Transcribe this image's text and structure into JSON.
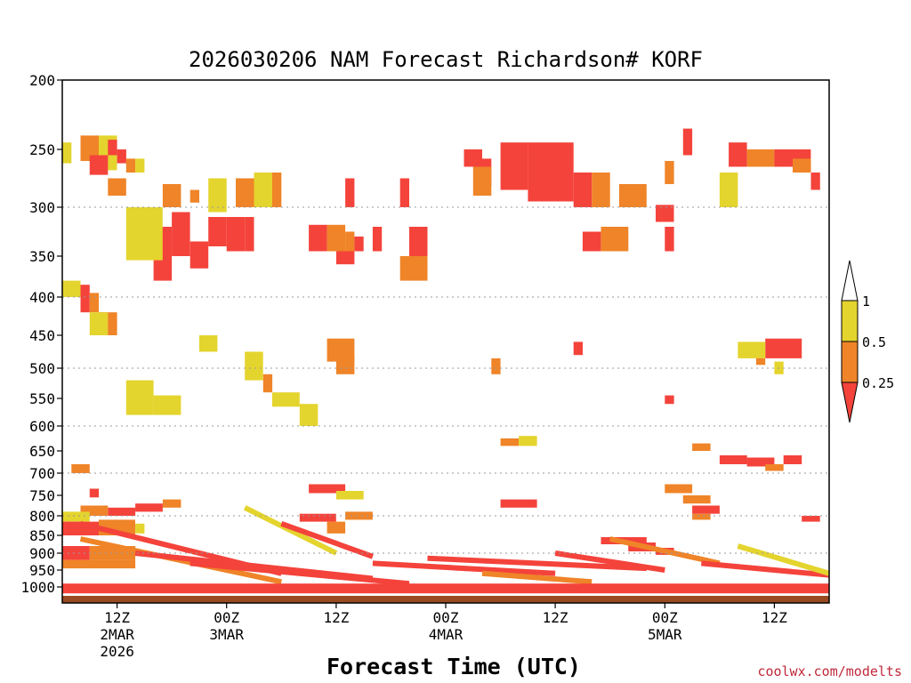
{
  "chart_data": {
    "type": "heatmap",
    "title": "2026030206 NAM Forecast Richardson# KORF",
    "xlabel": "Forecast Time (UTC)",
    "credit": "coolwx.com/modelts",
    "y_ticks": [
      "200",
      "250",
      "300",
      "350",
      "400",
      "450",
      "500",
      "550",
      "600",
      "650",
      "700",
      "750",
      "800",
      "850",
      "900",
      "950",
      "1000"
    ],
    "y_values": [
      200,
      250,
      300,
      350,
      400,
      450,
      500,
      550,
      600,
      650,
      700,
      750,
      800,
      850,
      900,
      950,
      1000
    ],
    "y_gridlines": [
      300,
      400,
      500,
      600,
      700,
      800,
      900
    ],
    "x_ticks": [
      {
        "hour": 12,
        "label": "12Z",
        "date": "2MAR",
        "year": "2026"
      },
      {
        "hour": 24,
        "label": "00Z",
        "date": "3MAR",
        "year": ""
      },
      {
        "hour": 36,
        "label": "12Z",
        "date": "",
        "year": ""
      },
      {
        "hour": 48,
        "label": "00Z",
        "date": "4MAR",
        "year": ""
      },
      {
        "hour": 60,
        "label": "12Z",
        "date": "",
        "year": ""
      },
      {
        "hour": 72,
        "label": "00Z",
        "date": "5MAR",
        "year": ""
      },
      {
        "hour": 84,
        "label": "12Z",
        "date": "",
        "year": ""
      }
    ],
    "x_range_hours": [
      6,
      90
    ],
    "legend": {
      "labels": [
        "1",
        "0.5",
        "0.25"
      ],
      "bins": [
        {
          "range": "< 0.25",
          "color": "#f4433b"
        },
        {
          "range": "0.25 - 0.5",
          "color": "#ef8428"
        },
        {
          "range": "0.5 - 1",
          "color": "#e4d42e"
        },
        {
          "range": "> 1",
          "color": "#ffffff"
        }
      ]
    },
    "cell_colors": {
      "y": "#e4d42e",
      "o": "#ef8428",
      "r": "#f4433b"
    },
    "terrain_color": "#9a4a22",
    "cells": [
      {
        "t": [
          6,
          7
        ],
        "p": [
          245,
          262
        ],
        "v": "y"
      },
      {
        "t": [
          8,
          10
        ],
        "p": [
          240,
          260
        ],
        "v": "o"
      },
      {
        "t": [
          10,
          12
        ],
        "p": [
          240,
          268
        ],
        "v": "y"
      },
      {
        "t": [
          9,
          11
        ],
        "p": [
          255,
          272
        ],
        "v": "r"
      },
      {
        "t": [
          11,
          12
        ],
        "p": [
          243,
          255
        ],
        "v": "r"
      },
      {
        "t": [
          12,
          13
        ],
        "p": [
          250,
          262
        ],
        "v": "r"
      },
      {
        "t": [
          13,
          14
        ],
        "p": [
          258,
          270
        ],
        "v": "o"
      },
      {
        "t": [
          14,
          15
        ],
        "p": [
          258,
          270
        ],
        "v": "y"
      },
      {
        "t": [
          11,
          13
        ],
        "p": [
          275,
          290
        ],
        "v": "o"
      },
      {
        "t": [
          17,
          19
        ],
        "p": [
          280,
          300
        ],
        "v": "o"
      },
      {
        "t": [
          20,
          21
        ],
        "p": [
          285,
          296
        ],
        "v": "o"
      },
      {
        "t": [
          16,
          18
        ],
        "p": [
          320,
          380
        ],
        "v": "r"
      },
      {
        "t": [
          18,
          20
        ],
        "p": [
          305,
          350
        ],
        "v": "r"
      },
      {
        "t": [
          20,
          22
        ],
        "p": [
          335,
          365
        ],
        "v": "r"
      },
      {
        "t": [
          22,
          24
        ],
        "p": [
          310,
          340
        ],
        "v": "r"
      },
      {
        "t": [
          24,
          26
        ],
        "p": [
          310,
          345
        ],
        "v": "r"
      },
      {
        "t": [
          26,
          27
        ],
        "p": [
          310,
          345
        ],
        "v": "r"
      },
      {
        "t": [
          13,
          17
        ],
        "p": [
          300,
          355
        ],
        "v": "y"
      },
      {
        "t": [
          25,
          27
        ],
        "p": [
          275,
          300
        ],
        "v": "o"
      },
      {
        "t": [
          22,
          24
        ],
        "p": [
          275,
          305
        ],
        "v": "y"
      },
      {
        "t": [
          27,
          29
        ],
        "p": [
          270,
          300
        ],
        "v": "y"
      },
      {
        "t": [
          29,
          30
        ],
        "p": [
          270,
          300
        ],
        "v": "o"
      },
      {
        "t": [
          33,
          35
        ],
        "p": [
          318,
          345
        ],
        "v": "r"
      },
      {
        "t": [
          35,
          37
        ],
        "p": [
          318,
          345
        ],
        "v": "o"
      },
      {
        "t": [
          37,
          38
        ],
        "p": [
          325,
          345
        ],
        "v": "o"
      },
      {
        "t": [
          38,
          39
        ],
        "p": [
          330,
          345
        ],
        "v": "r"
      },
      {
        "t": [
          36,
          38
        ],
        "p": [
          345,
          360
        ],
        "v": "r"
      },
      {
        "t": [
          40,
          41
        ],
        "p": [
          320,
          345
        ],
        "v": "r"
      },
      {
        "t": [
          44,
          46
        ],
        "p": [
          320,
          350
        ],
        "v": "r"
      },
      {
        "t": [
          43,
          46
        ],
        "p": [
          350,
          380
        ],
        "v": "o"
      },
      {
        "t": [
          37,
          38
        ],
        "p": [
          275,
          300
        ],
        "v": "r"
      },
      {
        "t": [
          43,
          44
        ],
        "p": [
          275,
          300
        ],
        "v": "r"
      },
      {
        "t": [
          50,
          52
        ],
        "p": [
          250,
          265
        ],
        "v": "r"
      },
      {
        "t": [
          52,
          53
        ],
        "p": [
          258,
          282
        ],
        "v": "r"
      },
      {
        "t": [
          51,
          53
        ],
        "p": [
          265,
          290
        ],
        "v": "o"
      },
      {
        "t": [
          54,
          57
        ],
        "p": [
          245,
          285
        ],
        "v": "r"
      },
      {
        "t": [
          57,
          62
        ],
        "p": [
          245,
          295
        ],
        "v": "r"
      },
      {
        "t": [
          62,
          64
        ],
        "p": [
          270,
          300
        ],
        "v": "r"
      },
      {
        "t": [
          64,
          66
        ],
        "p": [
          270,
          300
        ],
        "v": "o"
      },
      {
        "t": [
          63,
          65
        ],
        "p": [
          325,
          345
        ],
        "v": "r"
      },
      {
        "t": [
          65,
          68
        ],
        "p": [
          320,
          345
        ],
        "v": "o"
      },
      {
        "t": [
          67,
          70
        ],
        "p": [
          280,
          300
        ],
        "v": "o"
      },
      {
        "t": [
          71,
          73
        ],
        "p": [
          298,
          315
        ],
        "v": "r"
      },
      {
        "t": [
          72,
          73
        ],
        "p": [
          320,
          345
        ],
        "v": "r"
      },
      {
        "t": [
          72,
          73
        ],
        "p": [
          260,
          280
        ],
        "v": "o"
      },
      {
        "t": [
          74,
          75
        ],
        "p": [
          235,
          255
        ],
        "v": "r"
      },
      {
        "t": [
          79,
          81
        ],
        "p": [
          245,
          265
        ],
        "v": "r"
      },
      {
        "t": [
          81,
          84
        ],
        "p": [
          250,
          265
        ],
        "v": "o"
      },
      {
        "t": [
          84,
          88
        ],
        "p": [
          250,
          265
        ],
        "v": "r"
      },
      {
        "t": [
          88,
          89
        ],
        "p": [
          270,
          285
        ],
        "v": "r"
      },
      {
        "t": [
          86,
          88
        ],
        "p": [
          258,
          270
        ],
        "v": "o"
      },
      {
        "t": [
          78,
          80
        ],
        "p": [
          270,
          300
        ],
        "v": "y"
      },
      {
        "t": [
          6,
          8
        ],
        "p": [
          380,
          400
        ],
        "v": "y"
      },
      {
        "t": [
          8,
          9
        ],
        "p": [
          385,
          420
        ],
        "v": "r"
      },
      {
        "t": [
          9,
          10
        ],
        "p": [
          395,
          420
        ],
        "v": "o"
      },
      {
        "t": [
          10,
          11
        ],
        "p": [
          420,
          450
        ],
        "v": "r"
      },
      {
        "t": [
          11,
          12
        ],
        "p": [
          420,
          450
        ],
        "v": "o"
      },
      {
        "t": [
          9,
          11
        ],
        "p": [
          420,
          450
        ],
        "v": "y"
      },
      {
        "t": [
          35,
          38
        ],
        "p": [
          455,
          490
        ],
        "v": "o"
      },
      {
        "t": [
          36,
          38
        ],
        "p": [
          480,
          510
        ],
        "v": "o"
      },
      {
        "t": [
          83,
          87
        ],
        "p": [
          455,
          485
        ],
        "v": "r"
      },
      {
        "t": [
          80,
          83
        ],
        "p": [
          460,
          485
        ],
        "v": "y"
      },
      {
        "t": [
          82,
          83
        ],
        "p": [
          485,
          495
        ],
        "v": "o"
      },
      {
        "t": [
          84,
          85
        ],
        "p": [
          490,
          510
        ],
        "v": "y"
      },
      {
        "t": [
          62,
          63
        ],
        "p": [
          460,
          480
        ],
        "v": "r"
      },
      {
        "t": [
          72,
          73
        ],
        "p": [
          545,
          560
        ],
        "v": "r"
      },
      {
        "t": [
          53,
          54
        ],
        "p": [
          485,
          510
        ],
        "v": "o"
      },
      {
        "t": [
          13,
          16
        ],
        "p": [
          520,
          580
        ],
        "v": "y"
      },
      {
        "t": [
          16,
          19
        ],
        "p": [
          545,
          580
        ],
        "v": "y"
      },
      {
        "t": [
          21,
          23
        ],
        "p": [
          450,
          475
        ],
        "v": "y"
      },
      {
        "t": [
          26,
          28
        ],
        "p": [
          475,
          520
        ],
        "v": "y"
      },
      {
        "t": [
          28,
          29
        ],
        "p": [
          510,
          540
        ],
        "v": "o"
      },
      {
        "t": [
          29,
          32
        ],
        "p": [
          540,
          565
        ],
        "v": "y"
      },
      {
        "t": [
          32,
          34
        ],
        "p": [
          560,
          600
        ],
        "v": "y"
      },
      {
        "t": [
          54,
          56
        ],
        "p": [
          625,
          640
        ],
        "v": "o"
      },
      {
        "t": [
          56,
          58
        ],
        "p": [
          620,
          640
        ],
        "v": "y"
      },
      {
        "t": [
          7,
          9
        ],
        "p": [
          680,
          700
        ],
        "v": "o"
      },
      {
        "t": [
          9,
          10
        ],
        "p": [
          735,
          755
        ],
        "v": "r"
      },
      {
        "t": [
          14,
          17
        ],
        "p": [
          770,
          790
        ],
        "v": "r"
      },
      {
        "t": [
          17,
          19
        ],
        "p": [
          760,
          780
        ],
        "v": "o"
      },
      {
        "t": [
          11,
          14
        ],
        "p": [
          780,
          800
        ],
        "v": "r"
      },
      {
        "t": [
          8,
          11
        ],
        "p": [
          775,
          800
        ],
        "v": "o"
      },
      {
        "t": [
          6,
          9
        ],
        "p": [
          790,
          815
        ],
        "v": "y"
      },
      {
        "t": [
          6,
          10
        ],
        "p": [
          815,
          850
        ],
        "v": "r"
      },
      {
        "t": [
          10,
          14
        ],
        "p": [
          810,
          850
        ],
        "v": "o"
      },
      {
        "t": [
          14,
          15
        ],
        "p": [
          820,
          845
        ],
        "v": "y"
      },
      {
        "t": [
          6,
          9
        ],
        "p": [
          880,
          920
        ],
        "v": "r"
      },
      {
        "t": [
          9,
          14
        ],
        "p": [
          880,
          920
        ],
        "v": "o"
      },
      {
        "t": [
          6,
          14
        ],
        "p": [
          920,
          945
        ],
        "v": "o"
      },
      {
        "t": [
          33,
          37
        ],
        "p": [
          725,
          745
        ],
        "v": "r"
      },
      {
        "t": [
          36,
          39
        ],
        "p": [
          740,
          760
        ],
        "v": "y"
      },
      {
        "t": [
          32,
          36
        ],
        "p": [
          795,
          815
        ],
        "v": "r"
      },
      {
        "t": [
          35,
          37
        ],
        "p": [
          815,
          845
        ],
        "v": "o"
      },
      {
        "t": [
          37,
          40
        ],
        "p": [
          790,
          810
        ],
        "v": "o"
      },
      {
        "t": [
          54,
          58
        ],
        "p": [
          760,
          780
        ],
        "v": "r"
      },
      {
        "t": [
          72,
          75
        ],
        "p": [
          725,
          745
        ],
        "v": "o"
      },
      {
        "t": [
          74,
          77
        ],
        "p": [
          750,
          770
        ],
        "v": "o"
      },
      {
        "t": [
          75,
          78
        ],
        "p": [
          775,
          795
        ],
        "v": "r"
      },
      {
        "t": [
          75,
          77
        ],
        "p": [
          795,
          810
        ],
        "v": "o"
      },
      {
        "t": [
          78,
          81
        ],
        "p": [
          660,
          680
        ],
        "v": "r"
      },
      {
        "t": [
          81,
          84
        ],
        "p": [
          665,
          685
        ],
        "v": "r"
      },
      {
        "t": [
          83,
          85
        ],
        "p": [
          680,
          695
        ],
        "v": "o"
      },
      {
        "t": [
          85,
          87
        ],
        "p": [
          660,
          680
        ],
        "v": "r"
      },
      {
        "t": [
          75,
          77
        ],
        "p": [
          635,
          650
        ],
        "v": "o"
      },
      {
        "t": [
          65,
          70
        ],
        "p": [
          855,
          875
        ],
        "v": "r"
      },
      {
        "t": [
          68,
          71
        ],
        "p": [
          870,
          895
        ],
        "v": "r"
      },
      {
        "t": [
          71,
          73
        ],
        "p": [
          885,
          905
        ],
        "v": "r"
      },
      {
        "t": [
          87,
          89
        ],
        "p": [
          800,
          815
        ],
        "v": "r"
      }
    ]
  }
}
